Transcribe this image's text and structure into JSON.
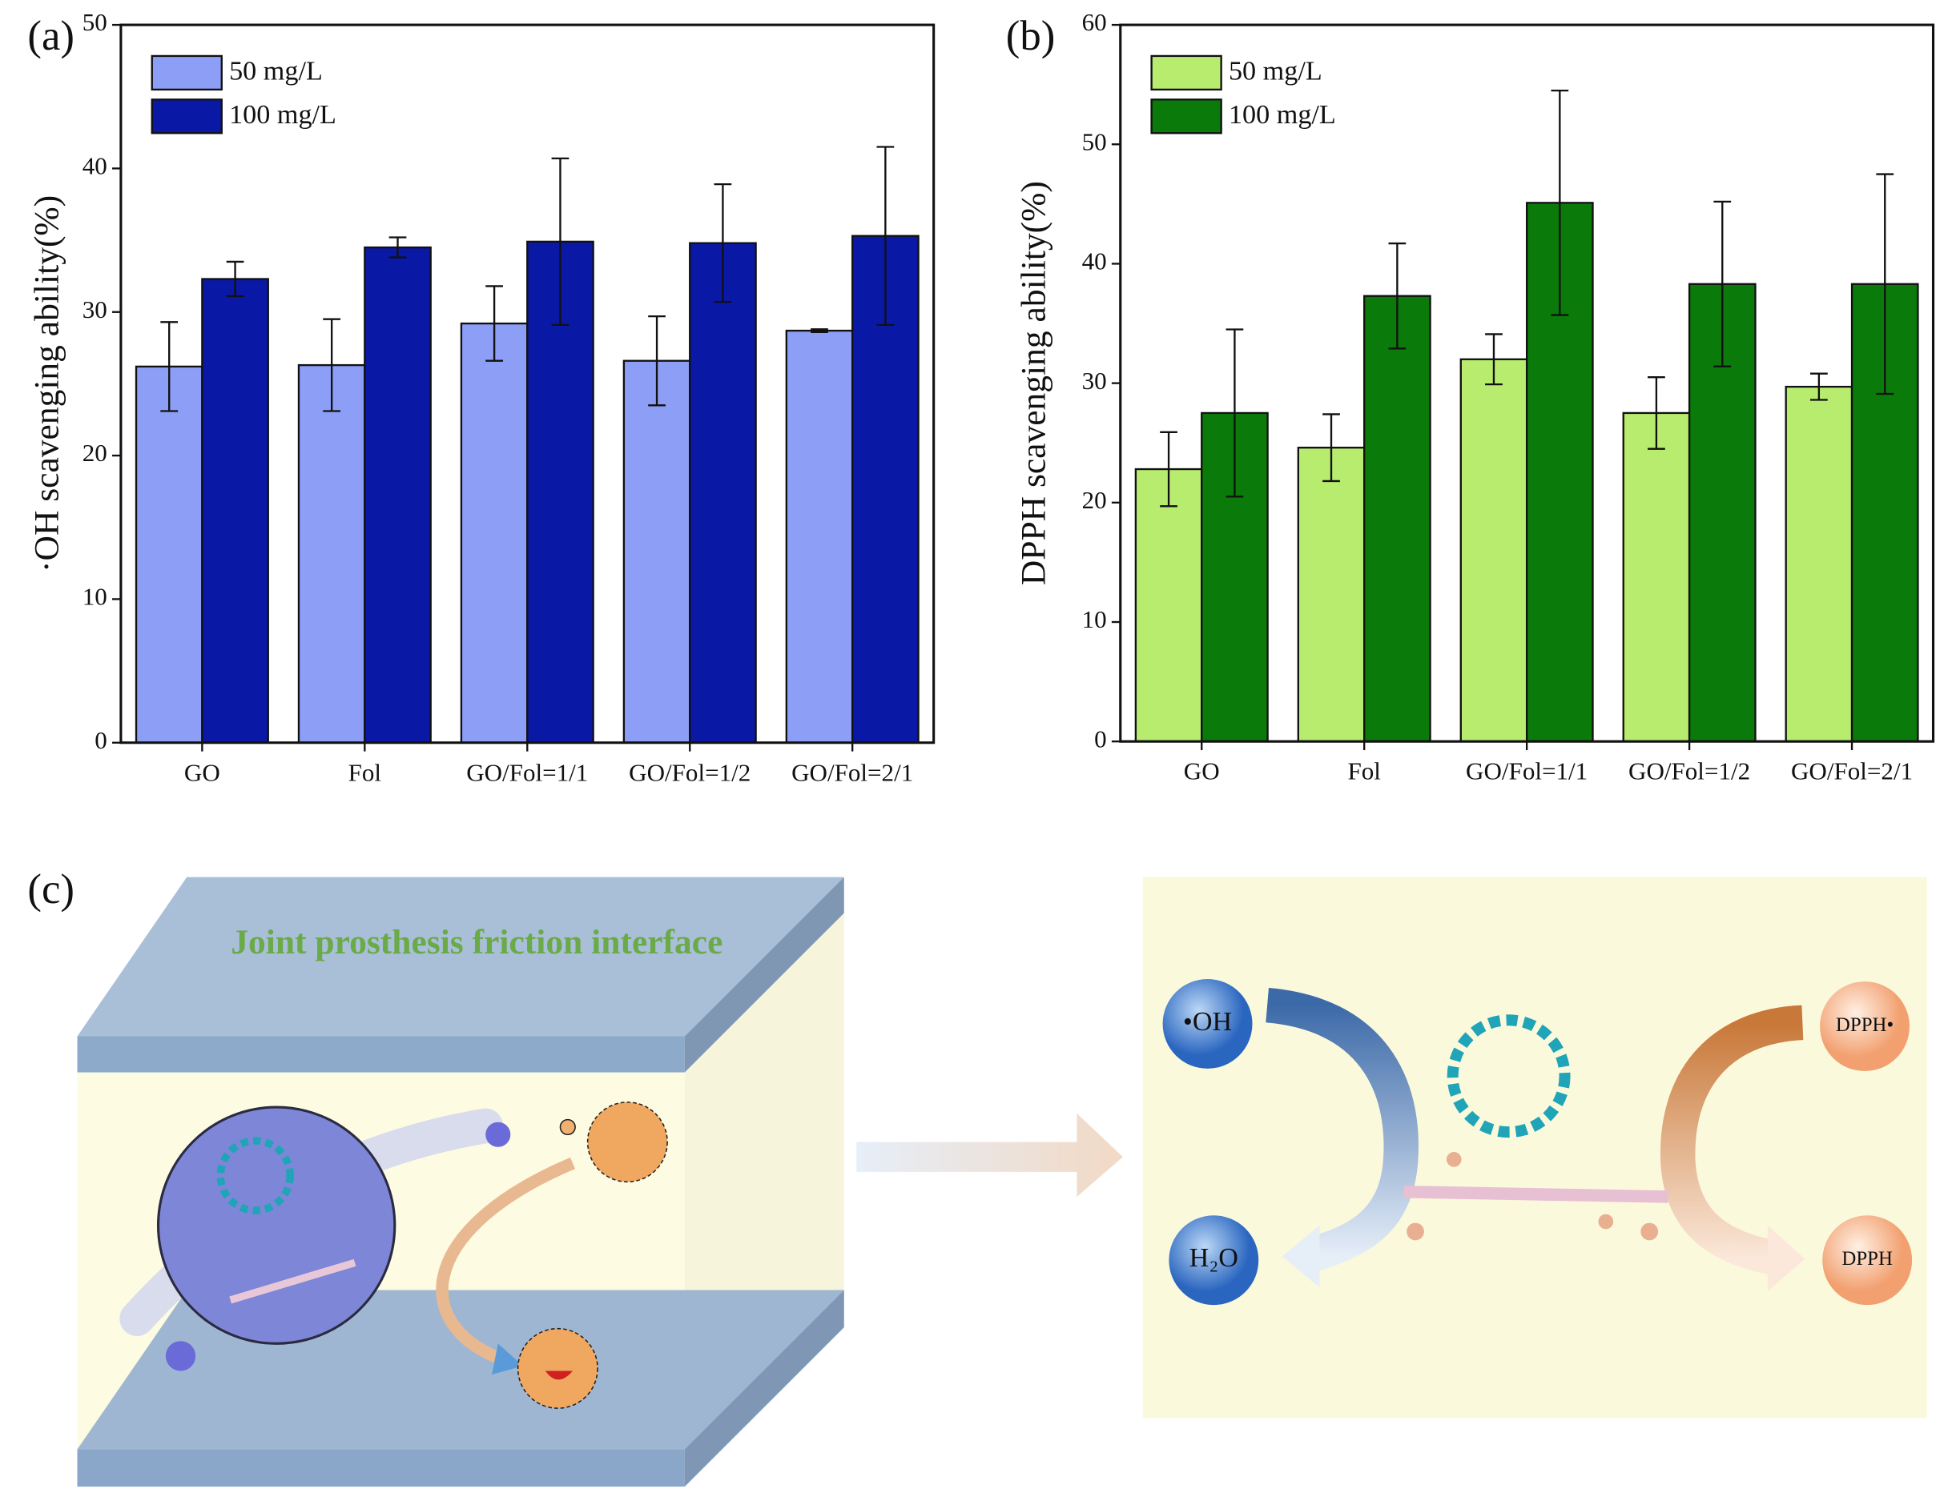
{
  "chart_data": [
    {
      "type": "bar",
      "panel_label": "(a)",
      "ylabel": "·OH scavenging ability(%)",
      "categories": [
        "GO",
        "Fol",
        "GO/Fol=1/1",
        "GO/Fol=1/2",
        "GO/Fol=2/1"
      ],
      "series": [
        {
          "name": "50 mg/L",
          "color": "#8c9ef5",
          "values": [
            26.2,
            26.3,
            29.2,
            26.6,
            28.7
          ],
          "errors": [
            3.1,
            3.2,
            2.6,
            3.1,
            0.1
          ]
        },
        {
          "name": "100 mg/L",
          "color": "#0a18a6",
          "values": [
            32.3,
            34.5,
            34.9,
            34.8,
            35.3
          ],
          "errors": [
            1.2,
            0.7,
            5.8,
            4.1,
            6.2
          ]
        }
      ],
      "ylim": [
        0,
        50
      ],
      "yticks": [
        0,
        10,
        20,
        30,
        40,
        50
      ],
      "legend": "upper left",
      "grid": false
    },
    {
      "type": "bar",
      "panel_label": "(b)",
      "ylabel": "DPPH scavenging ability(%)",
      "categories": [
        "GO",
        "Fol",
        "GO/Fol=1/1",
        "GO/Fol=1/2",
        "GO/Fol=2/1"
      ],
      "series": [
        {
          "name": "50 mg/L",
          "color": "#b8ec6e",
          "values": [
            22.8,
            24.6,
            32.0,
            27.5,
            29.7
          ],
          "errors": [
            3.1,
            2.8,
            2.1,
            3.0,
            1.1
          ]
        },
        {
          "name": "100 mg/L",
          "color": "#0a7a0a",
          "values": [
            27.5,
            37.3,
            45.1,
            38.3,
            38.3
          ],
          "errors": [
            7.0,
            4.4,
            9.4,
            6.9,
            9.2
          ]
        }
      ],
      "ylim": [
        0,
        60
      ],
      "yticks": [
        0,
        10,
        20,
        30,
        40,
        50,
        60
      ],
      "legend": "upper left",
      "grid": false
    }
  ],
  "diagram": {
    "panel_label": "(c)",
    "title": "Joint prosthesis friction interface",
    "nodes": [
      {
        "label": "•OH"
      },
      {
        "label": "H₂O"
      },
      {
        "label": "DPPH•"
      },
      {
        "label": "DPPH"
      }
    ]
  }
}
